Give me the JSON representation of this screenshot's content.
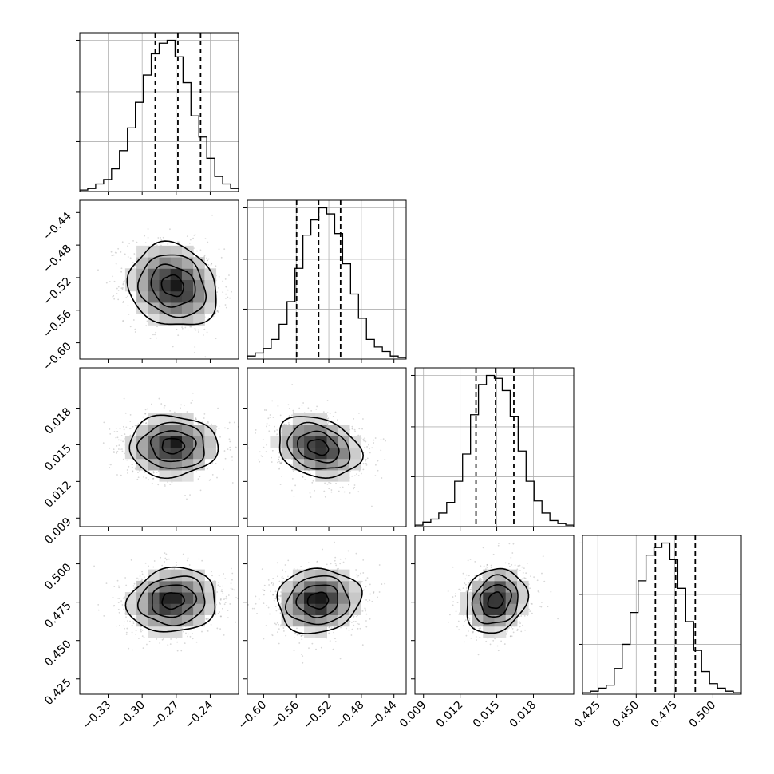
{
  "chart_data": {
    "type": "corner",
    "title": "",
    "parameters": [
      {
        "label": "",
        "range": [
          -0.355,
          -0.215
        ],
        "ticks": [
          "−0.33",
          "−0.30",
          "−0.27",
          "−0.24"
        ],
        "tick_values": [
          -0.33,
          -0.3,
          -0.27,
          -0.24
        ],
        "quantiles": [
          -0.2885,
          -0.2685,
          -0.2485
        ],
        "hist_edges": [
          -0.355,
          -0.215
        ],
        "hist_counts": [
          0.01,
          0.02,
          0.05,
          0.08,
          0.15,
          0.27,
          0.42,
          0.59,
          0.77,
          0.91,
          0.98,
          1.0,
          0.89,
          0.72,
          0.5,
          0.36,
          0.22,
          0.1,
          0.05,
          0.02
        ]
      },
      {
        "label": "",
        "range": [
          -0.62,
          -0.425
        ],
        "ticks": [
          "−0.60",
          "−0.56",
          "−0.52",
          "−0.48",
          "−0.44"
        ],
        "tick_values": [
          -0.6,
          -0.56,
          -0.52,
          -0.48,
          -0.44
        ],
        "quantiles": [
          -0.5595,
          -0.5325,
          -0.5055
        ],
        "hist_edges": [
          -0.62,
          -0.425
        ],
        "hist_counts": [
          0.02,
          0.04,
          0.07,
          0.13,
          0.23,
          0.38,
          0.6,
          0.82,
          0.92,
          1.0,
          0.96,
          0.83,
          0.63,
          0.43,
          0.27,
          0.13,
          0.08,
          0.05,
          0.02,
          0.01
        ]
      },
      {
        "label": "",
        "range": [
          0.0083,
          0.0213
        ],
        "ticks": [
          "0.009",
          "0.012",
          "0.015",
          "0.018"
        ],
        "tick_values": [
          0.009,
          0.012,
          0.015,
          0.018
        ],
        "quantiles": [
          0.0133,
          0.0149,
          0.0164
        ],
        "hist_edges": [
          0.0083,
          0.0213
        ],
        "hist_counts": [
          0.01,
          0.03,
          0.05,
          0.09,
          0.16,
          0.3,
          0.48,
          0.74,
          0.94,
          1.0,
          0.98,
          0.9,
          0.73,
          0.5,
          0.3,
          0.17,
          0.09,
          0.04,
          0.02,
          0.01
        ]
      },
      {
        "label": "",
        "range": [
          0.415,
          0.5185
        ],
        "ticks": [
          "0.425",
          "0.450",
          "0.475",
          "0.500"
        ],
        "tick_values": [
          0.425,
          0.45,
          0.475,
          0.5
        ],
        "quantiles": [
          0.4625,
          0.4757,
          0.4885
        ],
        "hist_edges": [
          0.415,
          0.5185
        ],
        "hist_counts": [
          0.01,
          0.02,
          0.04,
          0.06,
          0.17,
          0.33,
          0.54,
          0.75,
          0.92,
          0.97,
          1.0,
          0.89,
          0.7,
          0.48,
          0.29,
          0.15,
          0.07,
          0.04,
          0.02,
          0.01
        ]
      }
    ],
    "pairs": [
      {
        "x": 0,
        "y": 1,
        "mean": [
          -0.273,
          -0.53
        ],
        "sd": [
          0.0195,
          0.0255
        ],
        "rho": -0.15
      },
      {
        "x": 0,
        "y": 2,
        "mean": [
          -0.273,
          0.0149
        ],
        "sd": [
          0.0195,
          0.00125
        ],
        "rho": 0.0
      },
      {
        "x": 1,
        "y": 2,
        "mean": [
          -0.533,
          0.0148
        ],
        "sd": [
          0.0255,
          0.00125
        ],
        "rho": -0.25
      },
      {
        "x": 0,
        "y": 3,
        "mean": [
          -0.273,
          0.476
        ],
        "sd": [
          0.0195,
          0.0105
        ],
        "rho": 0.1
      },
      {
        "x": 1,
        "y": 3,
        "mean": [
          -0.533,
          0.476
        ],
        "sd": [
          0.0255,
          0.0105
        ],
        "rho": 0.08
      },
      {
        "x": 2,
        "y": 3,
        "mean": [
          0.0149,
          0.476
        ],
        "sd": [
          0.00125,
          0.0105
        ],
        "rho": 0.15
      }
    ],
    "contour_levels_sigma": [
      0.5,
      1.0,
      1.5,
      2.0
    ],
    "grid": true,
    "legend": "none"
  }
}
